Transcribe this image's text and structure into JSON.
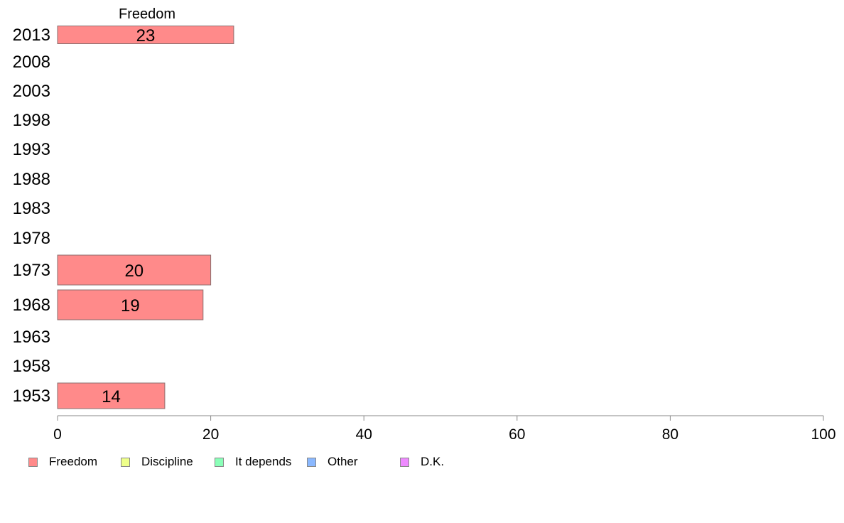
{
  "chart_data": {
    "type": "bar",
    "orientation": "horizontal",
    "title": "Freedom",
    "categories": [
      "2013",
      "2008",
      "2003",
      "1998",
      "1993",
      "1988",
      "1983",
      "1978",
      "1973",
      "1968",
      "1963",
      "1958",
      "1953"
    ],
    "series": [
      {
        "name": "Freedom",
        "color": "#ff8a8a",
        "values": [
          23,
          null,
          null,
          null,
          null,
          null,
          null,
          null,
          20,
          19,
          null,
          null,
          14
        ]
      }
    ],
    "xlim": [
      0,
      100
    ],
    "x_ticks": [
      0,
      20,
      40,
      60,
      80,
      100
    ],
    "grid": false,
    "legend": {
      "placement": "bottom",
      "entries": [
        {
          "label": "Freedom",
          "color": "#ff8a8a"
        },
        {
          "label": "Discipline",
          "color": "#eeff8a"
        },
        {
          "label": "It depends",
          "color": "#8affb8"
        },
        {
          "label": "Other",
          "color": "#8ab8ff"
        },
        {
          "label": "D.K.",
          "color": "#ee8aff"
        }
      ]
    }
  }
}
